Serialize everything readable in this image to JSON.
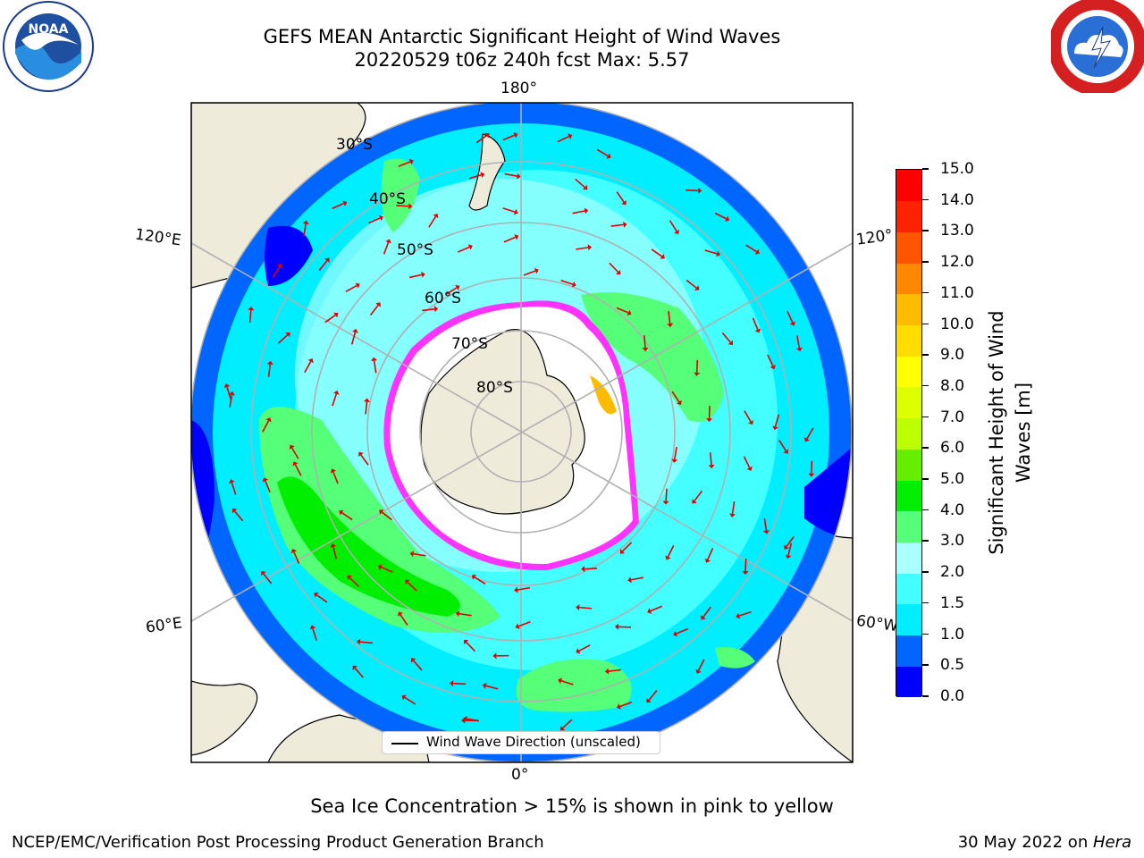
{
  "header": {
    "title_line1": "GEFS MEAN Antarctic Significant Height of Wind Waves",
    "title_line2": "20220529 t06z 240h fcst   Max: 5.57"
  },
  "map": {
    "projection": "south-polar-stereographic",
    "longitude_labels": {
      "top": "180°",
      "upper_left": "120°E",
      "upper_right": "120°",
      "lower_left": "60°E",
      "lower_right": "60°W",
      "bottom": "0°"
    },
    "latitude_labels": [
      "30°S",
      "40°S",
      "50°S",
      "60°S",
      "70°S",
      "80°S"
    ],
    "legend_label": "Wind Wave Direction (unscaled)",
    "colors": {
      "land": "#efebdb",
      "ice_free_ocean_low": "#00eeff",
      "sea_ice_edge": "#ff33ff"
    }
  },
  "colorbar": {
    "title": "Significant Height of Wind Waves [m]",
    "title_line1": "Significant Height of Wind",
    "title_line2": "Waves [m]",
    "ticks": [
      "0.0",
      "0.5",
      "1.0",
      "1.5",
      "2.0",
      "3.0",
      "4.0",
      "5.0",
      "6.0",
      "7.0",
      "8.0",
      "9.0",
      "10.0",
      "11.0",
      "12.0",
      "13.0",
      "14.0",
      "15.0"
    ],
    "colors": [
      "#0000ff",
      "#0066ff",
      "#00eeff",
      "#44ffff",
      "#aaffff",
      "#55ff77",
      "#00ee00",
      "#66ee00",
      "#bbff00",
      "#ddff00",
      "#ffff00",
      "#ffdd00",
      "#ffbb00",
      "#ff8800",
      "#ff5500",
      "#ff2200",
      "#ff0000"
    ]
  },
  "note": "Sea Ice Concentration > 15% is shown in pink to yellow",
  "footer": {
    "left": "NCEP/EMC/Verification Post Processing Product Generation Branch",
    "right_prefix": "30 May 2022 on ",
    "right_host": "Hera"
  },
  "logos": {
    "left": "noaa-logo",
    "right": "national-weather-service-logo"
  }
}
